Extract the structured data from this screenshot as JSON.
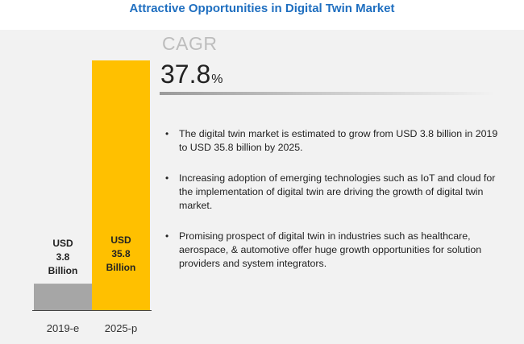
{
  "title": "Attractive Opportunities in Digital Twin Market",
  "cagr": {
    "label": "CAGR",
    "value": "37.8",
    "unit": "%"
  },
  "bullets": [
    "The digital twin market is estimated to grow from USD 3.8 billion in 2019 to USD 35.8 billion by 2025.",
    "Increasing adoption of emerging technologies such as IoT and cloud for the implementation of digital twin are driving the growth of digital twin market.",
    "Promising prospect of digital twin in industries such as healthcare, aerospace, & automotive offer huge growth opportunities for solution providers and system integrators."
  ],
  "chart_data": {
    "type": "bar",
    "categories": [
      "2019-e",
      "2025-p"
    ],
    "values": [
      3.8,
      35.8
    ],
    "data_labels": [
      [
        "USD",
        "3.8",
        "Billion"
      ],
      [
        "USD",
        "35.8",
        "Billion"
      ]
    ],
    "colors": [
      "#a6a6a6",
      "#ffc000"
    ],
    "ylim": [
      0,
      35.8
    ],
    "grid": false
  }
}
